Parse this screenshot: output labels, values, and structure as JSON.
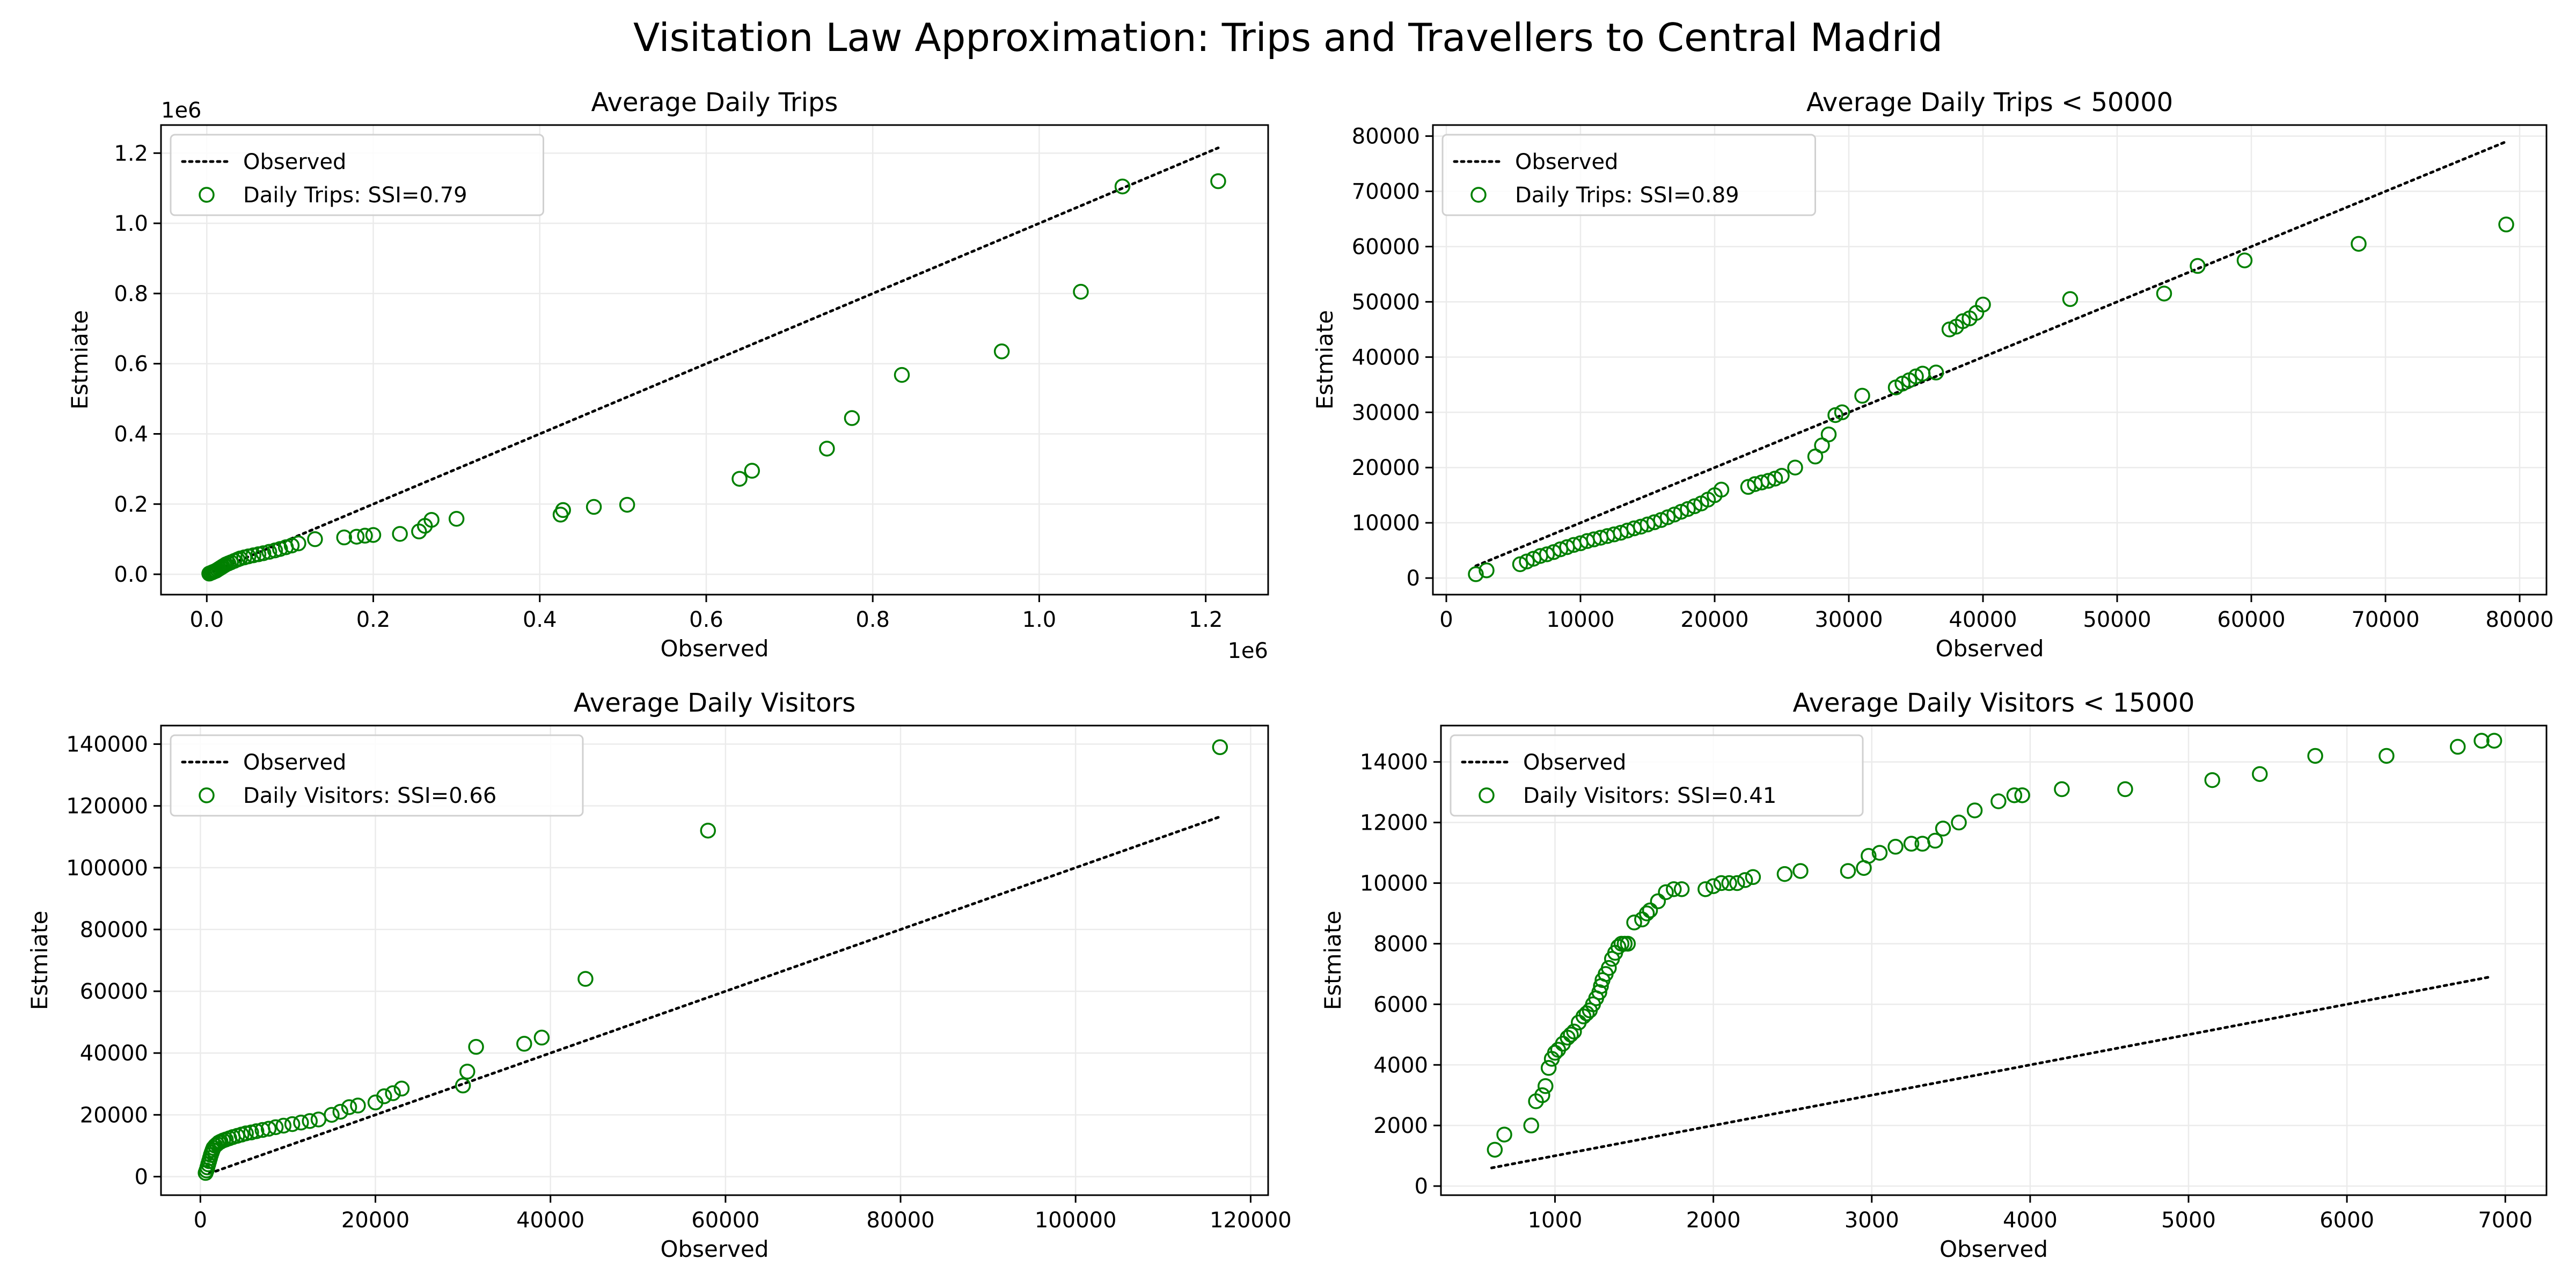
{
  "figure": {
    "suptitle": "Visitation Law Approximation: Trips and Travellers to Central Madrid",
    "colors": {
      "marker": "#008000",
      "line": "#000000",
      "grid": "#ebebeb",
      "axis": "#000000"
    }
  },
  "chart_data": [
    {
      "type": "scatter",
      "title": "Average Daily Trips",
      "xlabel": "Observed",
      "ylabel": "Estmiate",
      "x_offset_label": "1e6",
      "y_offset_label": "1e6",
      "xlim": [
        -55000,
        1275000
      ],
      "ylim": [
        -58000,
        1280000
      ],
      "xticks": [
        0,
        200000,
        400000,
        600000,
        800000,
        1000000,
        1200000
      ],
      "xtick_labels": [
        "0.0",
        "0.2",
        "0.4",
        "0.6",
        "0.8",
        "1.0",
        "1.2"
      ],
      "yticks": [
        0,
        200000,
        400000,
        600000,
        800000,
        1000000,
        1200000
      ],
      "ytick_labels": [
        "0.0",
        "0.2",
        "0.4",
        "0.6",
        "0.8",
        "1.0",
        "1.2"
      ],
      "grid": true,
      "legend_position": "upper-left",
      "legend_line_label": "Observed",
      "legend_marker_label": "Daily Trips: SSI=0.79",
      "observed_line": {
        "x": [
          0,
          1215000
        ],
        "y": [
          0,
          1215000
        ]
      },
      "series": [
        {
          "name": "Daily Trips: SSI=0.79",
          "x": [
            3000,
            5000,
            7000,
            9000,
            11000,
            13000,
            15000,
            17000,
            19000,
            21000,
            23000,
            26000,
            29000,
            33000,
            37000,
            40000,
            45000,
            50000,
            56000,
            62000,
            68000,
            75000,
            82000,
            88000,
            95000,
            102000,
            110000,
            130000,
            165000,
            180000,
            190000,
            200000,
            232000,
            255000,
            262000,
            270000,
            300000,
            425000,
            428000,
            465000,
            505000,
            640000,
            655000,
            745000,
            775000,
            835000,
            955000,
            1050000,
            1100000,
            1215000
          ],
          "y": [
            2000,
            4000,
            6000,
            8000,
            10000,
            13000,
            16000,
            19000,
            22000,
            25000,
            28000,
            31000,
            34000,
            38000,
            42000,
            45000,
            48000,
            51000,
            54000,
            57000,
            60000,
            64000,
            68000,
            72000,
            77000,
            82000,
            88000,
            100000,
            105000,
            107000,
            110000,
            112000,
            115000,
            122000,
            138000,
            155000,
            158000,
            170000,
            183000,
            192000,
            198000,
            272000,
            295000,
            358000,
            445000,
            568000,
            635000,
            805000,
            1105000,
            1120000
          ]
        }
      ]
    },
    {
      "type": "scatter",
      "title": "Average Daily Trips < 50000",
      "xlabel": "Observed",
      "ylabel": "Estmiate",
      "xlim": [
        -1000,
        82000
      ],
      "ylim": [
        -3000,
        82000
      ],
      "xticks": [
        0,
        10000,
        20000,
        30000,
        40000,
        50000,
        60000,
        70000,
        80000
      ],
      "xtick_labels": [
        "0",
        "10000",
        "20000",
        "30000",
        "40000",
        "50000",
        "60000",
        "70000",
        "80000"
      ],
      "yticks": [
        0,
        10000,
        20000,
        30000,
        40000,
        50000,
        60000,
        70000,
        80000
      ],
      "ytick_labels": [
        "0",
        "10000",
        "20000",
        "30000",
        "40000",
        "50000",
        "60000",
        "70000",
        "80000"
      ],
      "grid": true,
      "legend_position": "upper-left",
      "legend_line_label": "Observed",
      "legend_marker_label": "Daily Trips: SSI=0.89",
      "observed_line": {
        "x": [
          2200,
          79000
        ],
        "y": [
          2200,
          79000
        ]
      },
      "series": [
        {
          "name": "Daily Trips: SSI=0.89",
          "x": [
            2200,
            3000,
            5500,
            6000,
            6500,
            7000,
            7500,
            8000,
            8500,
            9000,
            9500,
            10000,
            10500,
            11000,
            11500,
            12000,
            12500,
            13000,
            13500,
            14000,
            14500,
            15000,
            15500,
            16000,
            16500,
            17000,
            17500,
            18000,
            18500,
            19000,
            19500,
            20000,
            20500,
            22500,
            23000,
            23500,
            24000,
            24500,
            25000,
            26000,
            27500,
            28000,
            28500,
            29000,
            29500,
            31000,
            33500,
            34000,
            34500,
            35000,
            35500,
            36500,
            37500,
            38000,
            38500,
            39000,
            39500,
            40000,
            46500,
            53500,
            56000,
            59500,
            68000,
            79000
          ],
          "y": [
            700,
            1400,
            2500,
            3000,
            3500,
            4000,
            4300,
            4700,
            5200,
            5600,
            6000,
            6300,
            6700,
            7000,
            7300,
            7600,
            7900,
            8200,
            8600,
            9000,
            9300,
            9700,
            10100,
            10500,
            11000,
            11500,
            12000,
            12500,
            13000,
            13500,
            14200,
            15000,
            16000,
            16500,
            17000,
            17300,
            17600,
            18000,
            18500,
            20000,
            22000,
            24000,
            26000,
            29500,
            30000,
            33000,
            34500,
            35200,
            35800,
            36500,
            37000,
            37200,
            45000,
            45500,
            46500,
            47000,
            48000,
            49500,
            50500,
            51500,
            56500,
            57500,
            60500,
            64000
          ]
        }
      ]
    },
    {
      "type": "scatter",
      "title": "Average Daily Visitors",
      "xlabel": "Observed",
      "ylabel": "Estmiate",
      "xlim": [
        -4500,
        122000
      ],
      "ylim": [
        -6000,
        146000
      ],
      "xticks": [
        0,
        20000,
        40000,
        60000,
        80000,
        100000,
        120000
      ],
      "xtick_labels": [
        "0",
        "20000",
        "40000",
        "60000",
        "80000",
        "100000",
        "120000"
      ],
      "yticks": [
        0,
        20000,
        40000,
        60000,
        80000,
        100000,
        120000,
        140000
      ],
      "ytick_labels": [
        "0",
        "20000",
        "40000",
        "60000",
        "80000",
        "100000",
        "120000",
        "140000"
      ],
      "grid": true,
      "legend_position": "upper-left",
      "legend_line_label": "Observed",
      "legend_marker_label": "Daily Visitors: SSI=0.66",
      "observed_line": {
        "x": [
          1000,
          116500
        ],
        "y": [
          1000,
          116500
        ]
      },
      "series": [
        {
          "name": "Daily Visitors: SSI=0.66",
          "x": [
            600,
            700,
            800,
            900,
            1000,
            1100,
            1200,
            1300,
            1400,
            1500,
            1700,
            1900,
            2100,
            2300,
            2600,
            2900,
            3300,
            3700,
            4200,
            4700,
            5200,
            5800,
            6400,
            7100,
            7800,
            8600,
            9500,
            10500,
            11500,
            12500,
            13500,
            15000,
            16000,
            17000,
            18000,
            20000,
            21000,
            22000,
            23000,
            30000,
            30500,
            31500,
            37000,
            39000,
            44000,
            58000,
            116500
          ],
          "y": [
            1200,
            2000,
            3000,
            4000,
            5000,
            6000,
            7000,
            7800,
            8600,
            9300,
            10000,
            10500,
            11000,
            11300,
            11700,
            12000,
            12400,
            12800,
            13200,
            13600,
            14000,
            14300,
            14700,
            15100,
            15500,
            16000,
            16500,
            17000,
            17500,
            18000,
            18500,
            20000,
            21000,
            22500,
            23000,
            24000,
            26000,
            27000,
            28500,
            29500,
            34000,
            42000,
            43000,
            45000,
            64000,
            112000,
            139000
          ]
        }
      ]
    },
    {
      "type": "scatter",
      "title": "Average Daily Visitors < 15000",
      "xlabel": "Observed",
      "ylabel": "Estmiate",
      "xlim": [
        280,
        7260
      ],
      "ylim": [
        -300,
        15200
      ],
      "xticks": [
        1000,
        2000,
        3000,
        4000,
        5000,
        6000,
        7000
      ],
      "xtick_labels": [
        "1000",
        "2000",
        "3000",
        "4000",
        "5000",
        "6000",
        "7000"
      ],
      "yticks": [
        0,
        2000,
        4000,
        6000,
        8000,
        10000,
        12000,
        14000
      ],
      "ytick_labels": [
        "0",
        "2000",
        "4000",
        "6000",
        "8000",
        "10000",
        "12000",
        "14000"
      ],
      "grid": true,
      "legend_position": "upper-left",
      "legend_line_label": "Observed",
      "legend_marker_label": "Daily Visitors: SSI=0.41",
      "observed_line": {
        "x": [
          600,
          6900
        ],
        "y": [
          600,
          6900
        ]
      },
      "series": [
        {
          "name": "Daily Visitors: SSI=0.41",
          "x": [
            620,
            680,
            850,
            880,
            920,
            940,
            960,
            980,
            1000,
            1020,
            1050,
            1080,
            1100,
            1120,
            1150,
            1180,
            1200,
            1220,
            1240,
            1260,
            1280,
            1290,
            1300,
            1320,
            1340,
            1360,
            1380,
            1400,
            1420,
            1440,
            1460,
            1500,
            1550,
            1580,
            1600,
            1650,
            1700,
            1750,
            1800,
            1950,
            2000,
            2050,
            2100,
            2150,
            2200,
            2250,
            2450,
            2550,
            2850,
            2950,
            2980,
            3050,
            3150,
            3250,
            3320,
            3400,
            3450,
            3550,
            3650,
            3800,
            3900,
            3950,
            4200,
            4600,
            5150,
            5450,
            5800,
            6250,
            6700,
            6850,
            6930
          ],
          "y": [
            1200,
            1700,
            2000,
            2800,
            3000,
            3300,
            3900,
            4200,
            4400,
            4500,
            4700,
            4900,
            5000,
            5100,
            5400,
            5600,
            5700,
            5800,
            6000,
            6200,
            6400,
            6600,
            6800,
            7000,
            7200,
            7500,
            7700,
            7900,
            8000,
            8000,
            8000,
            8700,
            8800,
            9000,
            9100,
            9400,
            9700,
            9800,
            9800,
            9800,
            9900,
            10000,
            10000,
            10000,
            10100,
            10200,
            10300,
            10400,
            10400,
            10500,
            10900,
            11000,
            11200,
            11300,
            11300,
            11400,
            11800,
            12000,
            12400,
            12700,
            12900,
            12900,
            13100,
            13100,
            13400,
            13600,
            14200,
            14200,
            14500,
            14700,
            14700
          ]
        }
      ]
    }
  ]
}
